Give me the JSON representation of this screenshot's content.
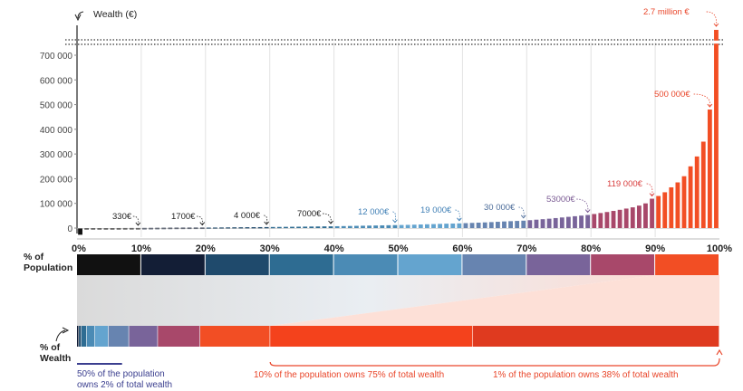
{
  "chart_data": {
    "type": "bar",
    "ylabel": "Wealth (€)",
    "xlabel": "% of Population",
    "ylim": [
      -25000,
      780000
    ],
    "y_axis_break": true,
    "yticks": [
      0,
      100000,
      200000,
      300000,
      400000,
      500000,
      600000,
      700000
    ],
    "ytick_labels": [
      "0",
      "100 000",
      "200 000",
      "300 000",
      "400 000",
      "500 000",
      "600 000",
      "700 000"
    ],
    "x_tick_labels": [
      "0%",
      "10%",
      "20%",
      "30%",
      "40%",
      "50%",
      "60%",
      "70%",
      "80%",
      "90%",
      "100%"
    ],
    "percentiles": [
      1,
      2,
      3,
      4,
      5,
      6,
      7,
      8,
      9,
      10,
      11,
      12,
      13,
      14,
      15,
      16,
      17,
      18,
      19,
      20,
      21,
      22,
      23,
      24,
      25,
      26,
      27,
      28,
      29,
      30,
      31,
      32,
      33,
      34,
      35,
      36,
      37,
      38,
      39,
      40,
      41,
      42,
      43,
      44,
      45,
      46,
      47,
      48,
      49,
      50,
      51,
      52,
      53,
      54,
      55,
      56,
      57,
      58,
      59,
      60,
      61,
      62,
      63,
      64,
      65,
      66,
      67,
      68,
      69,
      70,
      71,
      72,
      73,
      74,
      75,
      76,
      77,
      78,
      79,
      80,
      81,
      82,
      83,
      84,
      85,
      86,
      87,
      88,
      89,
      90,
      91,
      92,
      93,
      94,
      95,
      96,
      97,
      98,
      99,
      100
    ],
    "values": [
      -15000,
      -3000,
      -500,
      0,
      0,
      0,
      100,
      200,
      300,
      330,
      500,
      700,
      900,
      1100,
      1300,
      1400,
      1500,
      1600,
      1650,
      1700,
      1900,
      2100,
      2400,
      2700,
      3000,
      3200,
      3400,
      3600,
      3800,
      4000,
      4300,
      4600,
      4900,
      5200,
      5500,
      5800,
      6200,
      6500,
      6800,
      7000,
      7500,
      8000,
      8500,
      9000,
      9500,
      10000,
      10500,
      11000,
      11500,
      12000,
      12500,
      13000,
      13800,
      14600,
      15400,
      16200,
      17000,
      17800,
      18400,
      19000,
      20000,
      21000,
      22000,
      23000,
      24200,
      25500,
      26800,
      28000,
      29000,
      30000,
      32000,
      34000,
      36000,
      38000,
      40500,
      43000,
      45500,
      48000,
      50500,
      53000,
      57000,
      61000,
      65000,
      69500,
      74000,
      79000,
      84000,
      91000,
      100000,
      119000,
      130000,
      145000,
      165000,
      185000,
      210000,
      250000,
      290000,
      350000,
      480000,
      2700000
    ],
    "annotations": [
      "330€",
      "1700€",
      "4 000€",
      "7000€",
      "12 000€",
      "19 000€",
      "30 000€",
      "53000€",
      "119 000€",
      "500 000€",
      "2.7 million €"
    ],
    "decile_colors": [
      "#111111",
      "#131e36",
      "#1f4a6c",
      "#2e6c92",
      "#4b8bb5",
      "#64a4cf",
      "#6784b0",
      "#79649a",
      "#a8486a",
      "#f24e24"
    ],
    "wealth_labels": [
      "% of",
      "Wealth"
    ],
    "wealth_shares_percent": [
      0,
      0.3,
      0.4,
      0.8,
      1.3,
      2.1,
      3.2,
      4.5,
      6.6,
      10.9,
      31.6,
      38.4
    ],
    "wealth_segment_colors": [
      "#111111",
      "#131e36",
      "#1f4a6c",
      "#2e6c92",
      "#4b8bb5",
      "#64a4cf",
      "#6784b0",
      "#79649a",
      "#a8486a",
      "#f24e24",
      "#f4421c",
      "#df3a1f"
    ],
    "wealth_notes": [
      {
        "lines": [
          "50% of the population",
          "owns 2% of total wealth"
        ],
        "color": "#3b3f8f"
      },
      {
        "lines": [
          "10% of the population owns 75% of total wealth"
        ],
        "color": "#e9462a"
      },
      {
        "lines": [
          "1% of the population owns 38% of total wealth"
        ],
        "color": "#e9462a"
      }
    ]
  }
}
